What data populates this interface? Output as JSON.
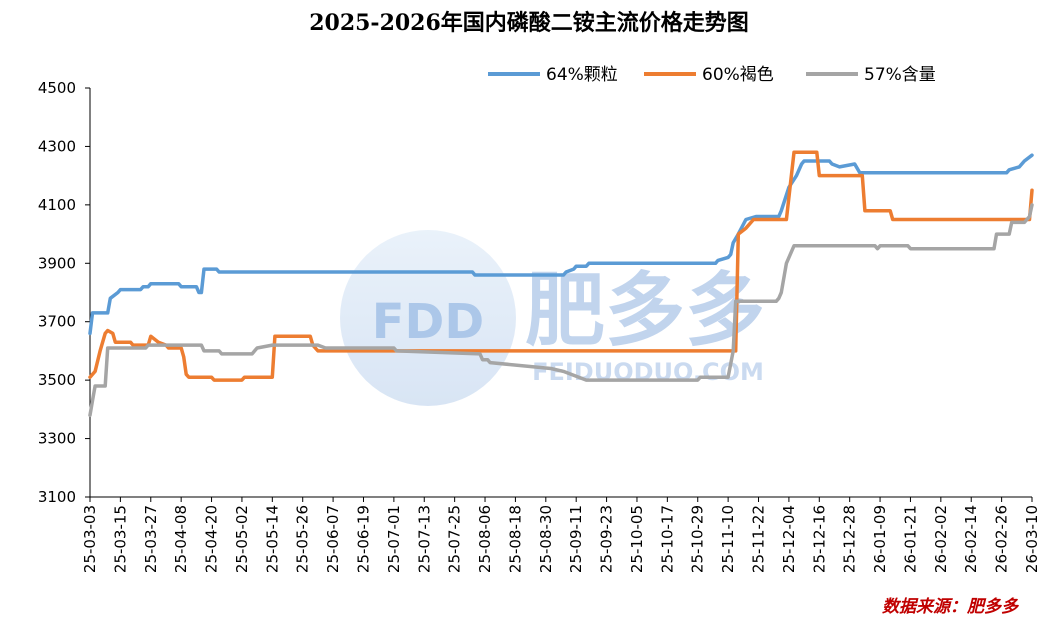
{
  "chart_data": {
    "type": "line",
    "title": "2025-2026年国内磷酸二铵主流价格走势图",
    "xlabel": "",
    "ylabel": "",
    "ylim": [
      3100,
      4500
    ],
    "yticks": [
      3100,
      3300,
      3500,
      3700,
      3900,
      4100,
      4300,
      4500
    ],
    "xrange": [
      "2025-03-03",
      "2026-03-10"
    ],
    "xtick_labels": [
      "25-03-03",
      "25-03-15",
      "25-03-27",
      "25-04-08",
      "25-04-20",
      "25-05-02",
      "25-05-14",
      "25-05-26",
      "25-06-07",
      "25-06-19",
      "25-07-01",
      "25-07-13",
      "25-07-25",
      "25-08-06",
      "25-08-18",
      "25-08-30",
      "25-09-11",
      "25-09-23",
      "25-10-05",
      "25-10-17",
      "25-10-29",
      "25-11-10",
      "25-11-22",
      "25-12-04",
      "25-12-16",
      "25-12-28",
      "26-01-09",
      "26-01-21",
      "26-02-02",
      "26-02-14",
      "26-02-26",
      "26-03-10"
    ],
    "grid": false,
    "legend_position": "top-right",
    "series": [
      {
        "name": "64%颗粒",
        "color": "#5b9bd5",
        "points": [
          [
            "2025-03-03",
            3660
          ],
          [
            "2025-03-04",
            3730
          ],
          [
            "2025-03-10",
            3730
          ],
          [
            "2025-03-11",
            3780
          ],
          [
            "2025-03-14",
            3800
          ],
          [
            "2025-03-15",
            3810
          ],
          [
            "2025-03-23",
            3810
          ],
          [
            "2025-03-24",
            3820
          ],
          [
            "2025-03-26",
            3820
          ],
          [
            "2025-03-27",
            3830
          ],
          [
            "2025-04-07",
            3830
          ],
          [
            "2025-04-08",
            3820
          ],
          [
            "2025-04-14",
            3820
          ],
          [
            "2025-04-15",
            3800
          ],
          [
            "2025-04-16",
            3800
          ],
          [
            "2025-04-17",
            3880
          ],
          [
            "2025-04-22",
            3880
          ],
          [
            "2025-04-23",
            3870
          ],
          [
            "2025-08-01",
            3870
          ],
          [
            "2025-08-02",
            3860
          ],
          [
            "2025-09-06",
            3860
          ],
          [
            "2025-09-07",
            3870
          ],
          [
            "2025-09-10",
            3880
          ],
          [
            "2025-09-11",
            3890
          ],
          [
            "2025-09-15",
            3890
          ],
          [
            "2025-09-16",
            3900
          ],
          [
            "2025-11-05",
            3900
          ],
          [
            "2025-11-06",
            3910
          ],
          [
            "2025-11-10",
            3920
          ],
          [
            "2025-11-11",
            3930
          ],
          [
            "2025-11-12",
            3970
          ],
          [
            "2025-11-14",
            4000
          ],
          [
            "2025-11-17",
            4050
          ],
          [
            "2025-11-21",
            4060
          ],
          [
            "2025-11-30",
            4060
          ],
          [
            "2025-12-01",
            4080
          ],
          [
            "2025-12-04",
            4160
          ],
          [
            "2025-12-07",
            4200
          ],
          [
            "2025-12-09",
            4240
          ],
          [
            "2025-12-10",
            4250
          ],
          [
            "2025-12-20",
            4250
          ],
          [
            "2025-12-21",
            4240
          ],
          [
            "2025-12-24",
            4230
          ],
          [
            "2025-12-30",
            4240
          ],
          [
            "2026-01-01",
            4210
          ],
          [
            "2026-02-28",
            4210
          ],
          [
            "2026-03-01",
            4220
          ],
          [
            "2026-03-05",
            4230
          ],
          [
            "2026-03-07",
            4250
          ],
          [
            "2026-03-10",
            4270
          ]
        ]
      },
      {
        "name": "60%褐色",
        "color": "#ed7d31",
        "points": [
          [
            "2025-03-03",
            3510
          ],
          [
            "2025-03-05",
            3530
          ],
          [
            "2025-03-07",
            3600
          ],
          [
            "2025-03-09",
            3660
          ],
          [
            "2025-03-10",
            3670
          ],
          [
            "2025-03-12",
            3660
          ],
          [
            "2025-03-13",
            3630
          ],
          [
            "2025-03-19",
            3630
          ],
          [
            "2025-03-20",
            3620
          ],
          [
            "2025-03-26",
            3620
          ],
          [
            "2025-03-27",
            3650
          ],
          [
            "2025-03-30",
            3630
          ],
          [
            "2025-04-02",
            3620
          ],
          [
            "2025-04-03",
            3610
          ],
          [
            "2025-04-08",
            3610
          ],
          [
            "2025-04-09",
            3580
          ],
          [
            "2025-04-10",
            3520
          ],
          [
            "2025-04-11",
            3510
          ],
          [
            "2025-04-20",
            3510
          ],
          [
            "2025-04-21",
            3500
          ],
          [
            "2025-05-02",
            3500
          ],
          [
            "2025-05-03",
            3510
          ],
          [
            "2025-05-14",
            3510
          ],
          [
            "2025-05-15",
            3650
          ],
          [
            "2025-05-29",
            3650
          ],
          [
            "2025-05-30",
            3620
          ],
          [
            "2025-06-01",
            3600
          ],
          [
            "2025-11-13",
            3600
          ],
          [
            "2025-11-14",
            4000
          ],
          [
            "2025-11-17",
            4020
          ],
          [
            "2025-11-20",
            4050
          ],
          [
            "2025-12-03",
            4050
          ],
          [
            "2025-12-06",
            4280
          ],
          [
            "2025-12-15",
            4280
          ],
          [
            "2025-12-16",
            4200
          ],
          [
            "2026-01-02",
            4200
          ],
          [
            "2026-01-03",
            4080
          ],
          [
            "2026-01-13",
            4080
          ],
          [
            "2026-01-14",
            4050
          ],
          [
            "2026-03-09",
            4050
          ],
          [
            "2026-03-10",
            4150
          ]
        ]
      },
      {
        "name": "57%含量",
        "color": "#a5a5a5",
        "points": [
          [
            "2025-03-03",
            3380
          ],
          [
            "2025-03-04",
            3430
          ],
          [
            "2025-03-05",
            3480
          ],
          [
            "2025-03-09",
            3480
          ],
          [
            "2025-03-10",
            3610
          ],
          [
            "2025-03-25",
            3610
          ],
          [
            "2025-03-26",
            3620
          ],
          [
            "2025-04-16",
            3620
          ],
          [
            "2025-04-17",
            3600
          ],
          [
            "2025-04-23",
            3600
          ],
          [
            "2025-04-24",
            3590
          ],
          [
            "2025-05-06",
            3590
          ],
          [
            "2025-05-07",
            3600
          ],
          [
            "2025-05-08",
            3610
          ],
          [
            "2025-05-14",
            3620
          ],
          [
            "2025-06-01",
            3620
          ],
          [
            "2025-06-04",
            3610
          ],
          [
            "2025-07-01",
            3610
          ],
          [
            "2025-07-02",
            3600
          ],
          [
            "2025-08-04",
            3590
          ],
          [
            "2025-08-05",
            3570
          ],
          [
            "2025-08-07",
            3570
          ],
          [
            "2025-08-08",
            3560
          ],
          [
            "2025-09-01",
            3540
          ],
          [
            "2025-09-06",
            3530
          ],
          [
            "2025-09-15",
            3500
          ],
          [
            "2025-10-29",
            3500
          ],
          [
            "2025-10-30",
            3510
          ],
          [
            "2025-11-10",
            3510
          ],
          [
            "2025-11-12",
            3600
          ],
          [
            "2025-11-13",
            3770
          ],
          [
            "2025-11-29",
            3770
          ],
          [
            "2025-11-30",
            3780
          ],
          [
            "2025-12-01",
            3800
          ],
          [
            "2025-12-03",
            3900
          ],
          [
            "2025-12-06",
            3960
          ],
          [
            "2026-01-07",
            3960
          ],
          [
            "2026-01-08",
            3950
          ],
          [
            "2026-01-09",
            3960
          ],
          [
            "2026-01-20",
            3960
          ],
          [
            "2026-01-21",
            3950
          ],
          [
            "2026-02-23",
            3950
          ],
          [
            "2026-02-24",
            4000
          ],
          [
            "2026-03-01",
            4000
          ],
          [
            "2026-03-02",
            4040
          ],
          [
            "2026-03-07",
            4040
          ],
          [
            "2026-03-09",
            4060
          ],
          [
            "2026-03-10",
            4100
          ]
        ]
      }
    ]
  },
  "watermark": {
    "logo_text": "FDD",
    "brand_text": "肥多多",
    "site_text": "FEIDUODUO.COM"
  },
  "source_text": "数据来源：肥多多",
  "source_color": "#c00000"
}
